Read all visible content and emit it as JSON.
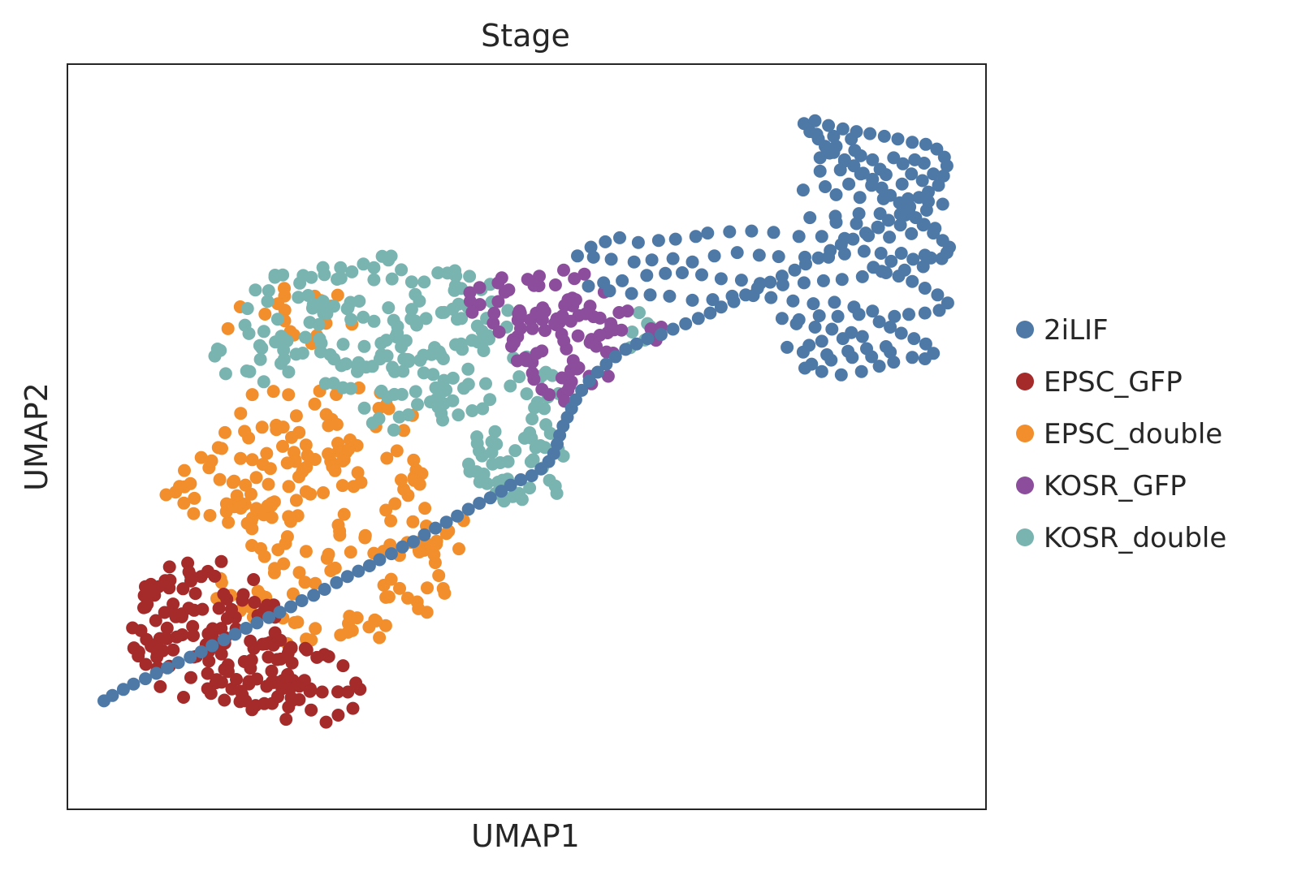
{
  "chart_data": {
    "type": "scatter",
    "title": "Stage",
    "xlabel": "UMAP1",
    "ylabel": "UMAP2",
    "xlim": [
      0,
      100
    ],
    "ylim": [
      0,
      100
    ],
    "grid": false,
    "legend_position": "right",
    "series": [
      {
        "name": "2iLIF",
        "color": "#4e79a7",
        "points": [
          [
            84.3,
            95.0
          ],
          [
            86.3,
            94.7
          ],
          [
            88.4,
            94.3
          ],
          [
            86.6,
            93.2
          ],
          [
            88.8,
            92.6
          ],
          [
            85.8,
            92.2
          ],
          [
            89.5,
            91.8
          ],
          [
            87.6,
            91.0
          ],
          [
            84.7,
            91.5
          ],
          [
            90.9,
            91.2
          ],
          [
            93.4,
            91.5
          ],
          [
            95.9,
            91.2
          ],
          [
            97.0,
            90.7
          ],
          [
            94.5,
            90.6
          ],
          [
            91.8,
            89.8
          ],
          [
            87.1,
            89.7
          ],
          [
            84.7,
            89.5
          ],
          [
            89.5,
            89.1
          ],
          [
            92.5,
            89.0
          ],
          [
            95.5,
            89.1
          ],
          [
            98.1,
            89.1
          ],
          [
            96.8,
            88.1
          ],
          [
            94.4,
            87.6
          ],
          [
            90.8,
            87.4
          ],
          [
            88.1,
            87.6
          ],
          [
            85.3,
            87.2
          ],
          [
            82.7,
            86.7
          ],
          [
            86.6,
            86.0
          ],
          [
            89.4,
            85.6
          ],
          [
            92.2,
            85.4
          ],
          [
            95.1,
            85.4
          ],
          [
            97.5,
            85.0
          ],
          [
            99.2,
            84.6
          ],
          [
            97.3,
            83.7
          ],
          [
            94.8,
            83.0
          ],
          [
            91.8,
            83.2
          ],
          [
            89.3,
            83.2
          ],
          [
            86.5,
            82.8
          ],
          [
            83.5,
            82.6
          ],
          [
            86.6,
            81.9
          ],
          [
            89.0,
            81.7
          ],
          [
            91.6,
            81.1
          ],
          [
            94.2,
            81.5
          ],
          [
            96.9,
            81.5
          ],
          [
            98.3,
            81.0
          ],
          [
            95.5,
            80.2
          ],
          [
            92.9,
            79.7
          ],
          [
            90.4,
            79.9
          ],
          [
            87.6,
            79.5
          ],
          [
            84.9,
            79.8
          ],
          [
            82.2,
            79.8
          ],
          [
            79.2,
            80.4
          ],
          [
            76.6,
            80.6
          ],
          [
            74.0,
            80.5
          ],
          [
            71.4,
            80.3
          ],
          [
            70.0,
            79.8
          ],
          [
            67.6,
            79.4
          ],
          [
            65.6,
            79.2
          ],
          [
            63.2,
            78.9
          ],
          [
            61.0,
            79.6
          ],
          [
            59.3,
            79.0
          ],
          [
            57.6,
            78.2
          ],
          [
            56.0,
            76.9
          ],
          [
            57.9,
            76.7
          ],
          [
            60.0,
            76.4
          ],
          [
            62.7,
            76.0
          ],
          [
            64.8,
            76.3
          ],
          [
            67.3,
            76.5
          ],
          [
            69.6,
            76.0
          ],
          [
            72.2,
            76.9
          ],
          [
            74.9,
            77.4
          ],
          [
            77.5,
            77.0
          ],
          [
            79.8,
            76.8
          ],
          [
            82.9,
            76.7
          ],
          [
            85.7,
            76.7
          ],
          [
            87.6,
            77.2
          ],
          [
            89.9,
            77.6
          ],
          [
            91.9,
            77.3
          ],
          [
            94.3,
            77.3
          ],
          [
            97.1,
            77.0
          ],
          [
            99.1,
            76.5
          ],
          [
            96.9,
            75.3
          ],
          [
            94.7,
            74.8
          ],
          [
            92.0,
            74.6
          ],
          [
            89.7,
            73.8
          ],
          [
            87.3,
            73.4
          ],
          [
            85.1,
            73.2
          ],
          [
            82.8,
            72.9
          ],
          [
            80.3,
            72.6
          ],
          [
            77.6,
            72.8
          ],
          [
            75.4,
            73.3
          ],
          [
            73.0,
            73.5
          ],
          [
            70.7,
            74.1
          ],
          [
            68.4,
            74.4
          ],
          [
            66.4,
            74.3
          ],
          [
            64.2,
            74.0
          ],
          [
            61.3,
            73.2
          ],
          [
            59.1,
            72.9
          ],
          [
            57.3,
            72.4
          ],
          [
            59.8,
            71.7
          ],
          [
            62.4,
            71.3
          ],
          [
            64.6,
            71.1
          ],
          [
            66.9,
            70.9
          ],
          [
            69.6,
            70.3
          ],
          [
            72.0,
            70.4
          ],
          [
            74.3,
            70.9
          ],
          [
            76.8,
            71.0
          ],
          [
            78.9,
            70.7
          ],
          [
            81.5,
            70.2
          ],
          [
            83.9,
            69.8
          ],
          [
            86.4,
            70.0
          ],
          [
            88.7,
            69.3
          ],
          [
            90.9,
            68.7
          ],
          [
            89.3,
            68.2
          ],
          [
            86.8,
            67.9
          ],
          [
            84.6,
            68.0
          ],
          [
            82.2,
            67.4
          ],
          [
            80.2,
            67.6
          ],
          [
            81.9,
            66.8
          ],
          [
            84.1,
            66.3
          ],
          [
            86.1,
            66.0
          ],
          [
            88.4,
            65.5
          ],
          [
            89.7,
            64.9
          ],
          [
            87.4,
            64.6
          ],
          [
            84.9,
            64.2
          ],
          [
            83.4,
            63.6
          ],
          [
            80.8,
            63.3
          ],
          [
            82.7,
            62.6
          ],
          [
            85.5,
            62.2
          ],
          [
            88.0,
            62.7
          ],
          [
            90.2,
            63.1
          ],
          [
            92.5,
            63.4
          ],
          [
            93.0,
            62.6
          ],
          [
            90.8,
            61.9
          ],
          [
            88.5,
            61.8
          ],
          [
            86.0,
            61.4
          ],
          [
            83.7,
            60.8
          ],
          [
            82.9,
            60.2
          ],
          [
            84.9,
            59.7
          ],
          [
            87.2,
            59.2
          ],
          [
            89.6,
            59.7
          ],
          [
            91.7,
            60.5
          ],
          [
            93.4,
            61.1
          ],
          [
            95.6,
            61.8
          ],
          [
            97.1,
            61.6
          ],
          [
            98.1,
            62.4
          ],
          [
            97.2,
            63.8
          ],
          [
            95.8,
            64.6
          ],
          [
            94.3,
            65.4
          ],
          [
            93.0,
            66.3
          ],
          [
            91.7,
            67.1
          ],
          [
            93.5,
            67.9
          ],
          [
            95.2,
            68.2
          ],
          [
            97.1,
            68.4
          ],
          [
            98.8,
            68.8
          ],
          [
            99.8,
            69.9
          ],
          [
            98.6,
            71.1
          ],
          [
            97.1,
            72.1
          ],
          [
            95.6,
            73.1
          ],
          [
            94.0,
            73.9
          ],
          [
            92.5,
            74.4
          ],
          [
            91.0,
            75.2
          ],
          [
            93.1,
            76.1
          ],
          [
            95.7,
            76.4
          ],
          [
            97.8,
            76.6
          ],
          [
            99.7,
            77.4
          ],
          [
            100.0,
            78.2
          ],
          [
            99.2,
            79.2
          ],
          [
            98.1,
            80.3
          ],
          [
            97.0,
            81.6
          ],
          [
            96.0,
            82.6
          ],
          [
            95.2,
            83.7
          ],
          [
            94.1,
            84.8
          ],
          [
            93.0,
            85.9
          ],
          [
            92.0,
            87.0
          ],
          [
            90.9,
            88.3
          ],
          [
            89.8,
            89.2
          ],
          [
            88.7,
            90.3
          ],
          [
            87.6,
            91.2
          ],
          [
            86.3,
            92.3
          ],
          [
            85.3,
            93.2
          ],
          [
            84.5,
            94.3
          ],
          [
            83.5,
            95.4
          ],
          [
            82.8,
            96.6
          ],
          [
            84.1,
            97.0
          ],
          [
            85.7,
            96.3
          ],
          [
            87.4,
            95.8
          ],
          [
            89.0,
            95.4
          ],
          [
            90.6,
            95.1
          ],
          [
            92.3,
            94.7
          ],
          [
            93.9,
            94.3
          ],
          [
            95.6,
            93.8
          ],
          [
            97.2,
            93.5
          ],
          [
            98.5,
            92.8
          ],
          [
            99.4,
            91.6
          ],
          [
            99.7,
            90.3
          ],
          [
            99.3,
            88.8
          ],
          [
            98.7,
            87.4
          ],
          [
            97.5,
            86.4
          ],
          [
            96.4,
            85.6
          ],
          [
            95.3,
            84.2
          ],
          [
            94.2,
            83.1
          ],
          [
            92.8,
            82.2
          ],
          [
            91.5,
            81.2
          ],
          [
            90.1,
            80.3
          ],
          [
            88.6,
            79.4
          ],
          [
            87.2,
            78.6
          ],
          [
            85.9,
            77.7
          ],
          [
            84.5,
            76.6
          ],
          [
            83.0,
            75.7
          ],
          [
            81.7,
            74.8
          ],
          [
            80.2,
            73.9
          ],
          [
            78.8,
            73.0
          ],
          [
            77.3,
            72.1
          ],
          [
            75.9,
            71.1
          ],
          [
            74.5,
            70.1
          ],
          [
            73.0,
            69.3
          ],
          [
            71.7,
            68.4
          ],
          [
            70.3,
            67.6
          ],
          [
            68.8,
            66.8
          ],
          [
            67.3,
            66.0
          ],
          [
            65.9,
            65.2
          ],
          [
            64.3,
            64.6
          ],
          [
            63.0,
            63.8
          ],
          [
            61.7,
            63.0
          ],
          [
            60.5,
            61.9
          ],
          [
            59.4,
            60.8
          ],
          [
            58.4,
            59.6
          ],
          [
            57.4,
            58.3
          ],
          [
            56.5,
            56.9
          ],
          [
            55.8,
            55.5
          ],
          [
            55.3,
            54.2
          ],
          [
            54.8,
            52.9
          ],
          [
            54.3,
            51.6
          ],
          [
            53.9,
            50.2
          ],
          [
            53.6,
            48.9
          ],
          [
            53.2,
            47.5
          ],
          [
            52.6,
            46.3
          ],
          [
            51.7,
            45.2
          ],
          [
            50.6,
            44.2
          ],
          [
            49.3,
            43.6
          ],
          [
            48.1,
            42.8
          ],
          [
            47.0,
            41.9
          ],
          [
            45.7,
            40.9
          ],
          [
            44.4,
            40.1
          ],
          [
            43.1,
            39.2
          ],
          [
            41.8,
            38.2
          ],
          [
            40.5,
            37.3
          ],
          [
            39.2,
            36.4
          ],
          [
            37.9,
            35.4
          ],
          [
            36.6,
            34.4
          ],
          [
            35.3,
            33.6
          ],
          [
            34.0,
            32.6
          ],
          [
            32.6,
            31.7
          ],
          [
            31.4,
            30.8
          ],
          [
            30.1,
            30.0
          ],
          [
            28.8,
            29.2
          ],
          [
            27.5,
            28.3
          ],
          [
            26.1,
            27.3
          ],
          [
            24.8,
            26.4
          ],
          [
            23.4,
            25.6
          ],
          [
            22.1,
            24.7
          ],
          [
            20.8,
            23.9
          ],
          [
            19.5,
            23.1
          ],
          [
            18.1,
            22.3
          ],
          [
            16.8,
            21.5
          ],
          [
            15.5,
            20.6
          ],
          [
            14.2,
            19.8
          ],
          [
            12.8,
            18.9
          ],
          [
            11.5,
            18.0
          ],
          [
            10.2,
            17.2
          ],
          [
            8.8,
            16.4
          ],
          [
            7.5,
            15.6
          ],
          [
            6.2,
            14.8
          ],
          [
            4.9,
            14.0
          ],
          [
            3.5,
            13.2
          ],
          [
            2.3,
            12.4
          ],
          [
            1.0,
            11.5
          ],
          [
            0.0,
            10.7
          ]
        ]
      },
      {
        "name": "EPSC_GFP",
        "color": "#a52a2a",
        "points": []
      },
      {
        "name": "EPSC_double",
        "color": "#f28e2b",
        "points": []
      },
      {
        "name": "KOSR_GFP",
        "color": "#8b4d9c",
        "points": []
      },
      {
        "name": "KOSR_double",
        "color": "#79b4b0",
        "points": []
      }
    ]
  }
}
